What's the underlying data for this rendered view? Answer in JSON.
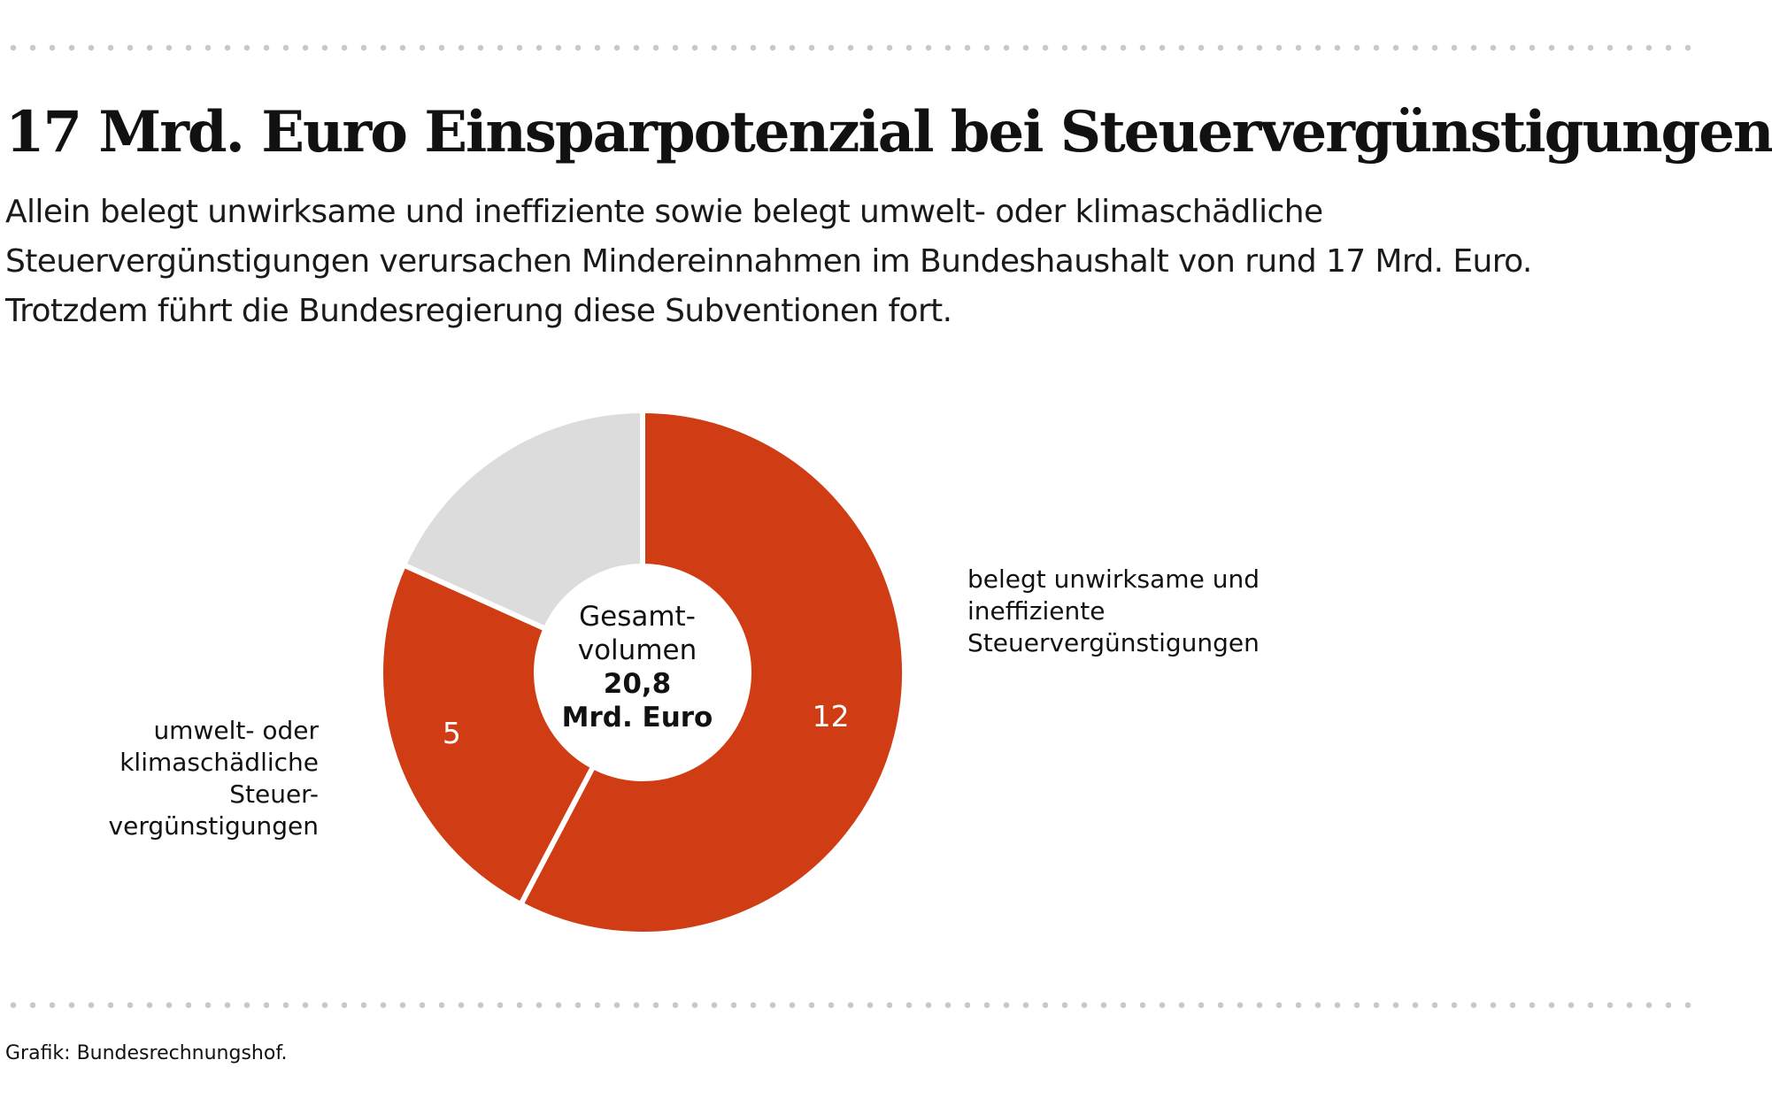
{
  "header": {
    "title": "17 Mrd. Euro Einsparpotenzial bei Steuervergünstigungen",
    "subtitle": "Allein belegt unwirksame und ineffiziente sowie belegt umwelt- oder klimaschädliche Steuervergünstigungen verursachen Mindereinnahmen im Bundeshaushalt von rund 17 Mrd. Euro. Trotzdem führt die Bundesregierung diese Subventionen fort."
  },
  "center": {
    "line1": "Gesamt-",
    "line2": "volumen",
    "line3": "20,8",
    "line4": "Mrd. Euro"
  },
  "chart_data": {
    "type": "pie",
    "variant": "donut",
    "total": 20.8,
    "unit": "Mrd. Euro",
    "slices": [
      {
        "label": "belegt unwirksame und ineffiziente Steuervergünstigungen",
        "value": 12,
        "value_label": "12",
        "color": "#d03c14"
      },
      {
        "label": "umwelt- oder klimaschädliche Steuervergünstigungen",
        "value": 5,
        "value_label": "5",
        "color": "#d03c14"
      },
      {
        "label": "",
        "value": 3.8,
        "value_label": "",
        "color": "#dcdcdc"
      }
    ]
  },
  "legend": {
    "right": {
      "line1": "belegt unwirksame und",
      "line2": "ineffiziente",
      "line3": "Steuervergünstigungen"
    },
    "left": {
      "line1": "umwelt- oder",
      "line2": "klimaschädliche",
      "line3": "Steuer-",
      "line4": "vergünstigungen"
    }
  },
  "footer": {
    "source": "Grafik: Bundesrechnungshof."
  }
}
